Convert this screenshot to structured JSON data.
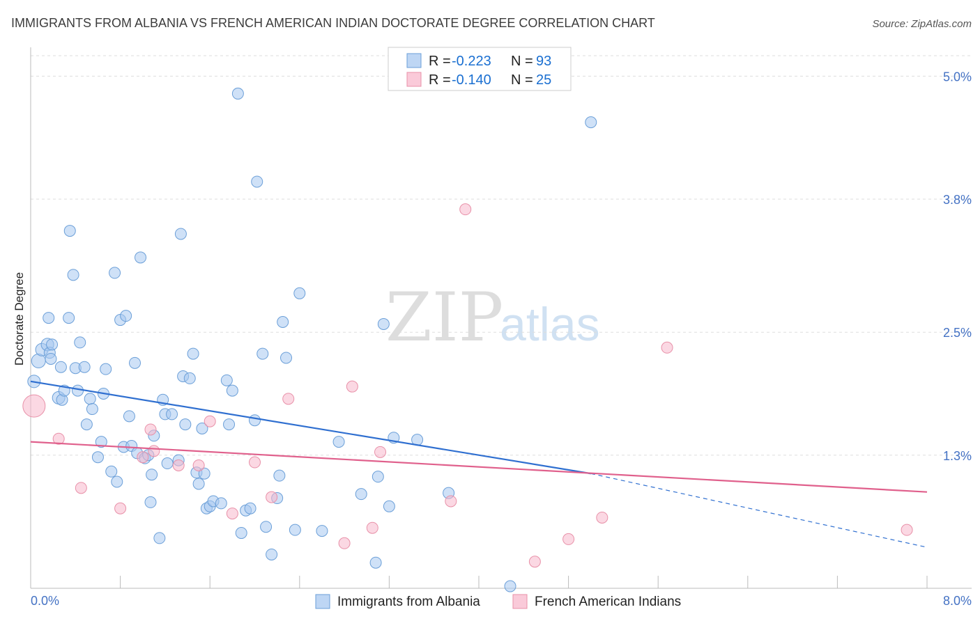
{
  "title": "IMMIGRANTS FROM ALBANIA VS FRENCH AMERICAN INDIAN DOCTORATE DEGREE CORRELATION CHART",
  "source": "Source: ZipAtlas.com",
  "watermark": {
    "zip": "ZIP",
    "atlas": "atlas"
  },
  "legend": {
    "rows": [
      {
        "r_label": "R = ",
        "r_value": "-0.223",
        "n_label": "N = ",
        "n_value": "93",
        "color": "#a8c8f0"
      },
      {
        "r_label": "R = ",
        "r_value": "-0.140",
        "n_label": "N = ",
        "n_value": "25",
        "color": "#f8b8cc"
      }
    ]
  },
  "bottom_legend": [
    {
      "label": "Immigrants from Albania",
      "color": "#a8c8f0"
    },
    {
      "label": "French American Indians",
      "color": "#f8b8cc"
    }
  ],
  "chart_data": {
    "type": "scatter",
    "ylabel": "Doctorate Degree",
    "xlim": [
      0.0,
      8.0
    ],
    "ylim": [
      0.0,
      5.2
    ],
    "x_tick_labels": [
      "0.0%",
      "8.0%"
    ],
    "y_ticks": [
      {
        "value": 1.3,
        "label": "1.3%"
      },
      {
        "value": 2.5,
        "label": "2.5%"
      },
      {
        "value": 3.8,
        "label": "3.8%"
      },
      {
        "value": 5.0,
        "label": "5.0%"
      }
    ],
    "grid": true,
    "series": [
      {
        "name": "Immigrants from Albania",
        "color": "#a8c8f0",
        "stroke": "#6b9fd8",
        "trend": {
          "x0": 0.0,
          "y0": 2.02,
          "x1": 5.0,
          "y1": 1.12,
          "dash_to_x": 8.0,
          "dash_to_y": 0.4,
          "color": "#2f6fd0"
        },
        "points": [
          [
            0.03,
            2.02
          ],
          [
            0.07,
            2.22
          ],
          [
            0.1,
            2.33
          ],
          [
            0.15,
            2.38
          ],
          [
            0.16,
            2.64
          ],
          [
            0.17,
            2.3
          ],
          [
            0.18,
            2.24
          ],
          [
            0.19,
            2.38
          ],
          [
            0.25,
            1.86
          ],
          [
            0.27,
            2.16
          ],
          [
            0.28,
            1.84
          ],
          [
            0.3,
            1.93
          ],
          [
            0.34,
            2.64
          ],
          [
            0.35,
            3.49
          ],
          [
            0.38,
            3.06
          ],
          [
            0.4,
            2.15
          ],
          [
            0.42,
            1.93
          ],
          [
            0.44,
            2.4
          ],
          [
            0.48,
            2.16
          ],
          [
            0.5,
            1.6
          ],
          [
            0.53,
            1.85
          ],
          [
            0.55,
            1.75
          ],
          [
            0.6,
            1.28
          ],
          [
            0.63,
            1.43
          ],
          [
            0.65,
            1.9
          ],
          [
            0.67,
            2.14
          ],
          [
            0.72,
            1.14
          ],
          [
            0.75,
            3.08
          ],
          [
            0.77,
            1.04
          ],
          [
            0.8,
            2.62
          ],
          [
            0.83,
            1.38
          ],
          [
            0.85,
            2.66
          ],
          [
            0.88,
            1.68
          ],
          [
            0.9,
            1.39
          ],
          [
            0.93,
            2.2
          ],
          [
            0.95,
            1.32
          ],
          [
            0.98,
            3.23
          ],
          [
            1.02,
            1.27
          ],
          [
            1.05,
            1.3
          ],
          [
            1.07,
            0.84
          ],
          [
            1.08,
            1.11
          ],
          [
            1.1,
            1.49
          ],
          [
            1.15,
            0.49
          ],
          [
            1.18,
            1.84
          ],
          [
            1.2,
            1.7
          ],
          [
            1.22,
            1.22
          ],
          [
            1.26,
            1.7
          ],
          [
            1.32,
            1.25
          ],
          [
            1.34,
            3.46
          ],
          [
            1.36,
            2.07
          ],
          [
            1.38,
            1.6
          ],
          [
            1.42,
            2.05
          ],
          [
            1.45,
            2.29
          ],
          [
            1.48,
            1.13
          ],
          [
            1.5,
            1.02
          ],
          [
            1.53,
            1.56
          ],
          [
            1.55,
            1.12
          ],
          [
            1.57,
            0.78
          ],
          [
            1.6,
            0.8
          ],
          [
            1.63,
            0.85
          ],
          [
            1.7,
            0.83
          ],
          [
            1.75,
            2.03
          ],
          [
            1.77,
            1.6
          ],
          [
            1.8,
            1.93
          ],
          [
            1.85,
            4.83
          ],
          [
            1.88,
            0.54
          ],
          [
            1.92,
            0.76
          ],
          [
            1.96,
            0.78
          ],
          [
            2.0,
            1.64
          ],
          [
            2.02,
            3.97
          ],
          [
            2.07,
            2.29
          ],
          [
            2.1,
            0.6
          ],
          [
            2.15,
            0.33
          ],
          [
            2.2,
            0.88
          ],
          [
            2.22,
            1.1
          ],
          [
            2.25,
            2.6
          ],
          [
            2.28,
            2.25
          ],
          [
            2.4,
            2.88
          ],
          [
            2.36,
            0.57
          ],
          [
            2.6,
            0.56
          ],
          [
            2.75,
            1.43
          ],
          [
            2.95,
            0.92
          ],
          [
            3.08,
            0.25
          ],
          [
            3.1,
            1.09
          ],
          [
            3.15,
            2.58
          ],
          [
            3.2,
            0.8
          ],
          [
            3.24,
            1.47
          ],
          [
            3.45,
            1.45
          ],
          [
            3.73,
            0.93
          ],
          [
            4.28,
            0.02
          ],
          [
            5.0,
            4.55
          ]
        ],
        "point_radius": [
          9,
          10,
          9,
          9,
          8,
          8,
          8,
          8,
          9,
          8,
          8,
          8,
          8,
          8,
          8,
          8,
          8,
          8,
          8,
          8,
          8,
          8,
          8,
          8,
          8,
          8,
          8,
          8,
          8,
          8,
          8,
          8,
          8,
          8,
          8,
          8,
          8,
          8,
          8,
          8,
          8,
          8,
          8,
          8,
          8,
          8,
          8,
          8,
          8,
          8,
          8,
          8,
          8,
          8,
          8,
          8,
          8,
          8,
          8,
          8,
          8,
          8,
          8,
          8,
          8,
          8,
          8,
          8,
          8,
          8,
          8,
          8,
          8,
          8,
          8,
          8,
          8,
          8,
          8,
          8,
          8,
          8,
          8,
          8,
          8,
          8,
          8,
          8,
          8,
          8,
          8
        ]
      },
      {
        "name": "French American Indians",
        "color": "#f8b8cc",
        "stroke": "#e890a8",
        "trend": {
          "x0": 0.0,
          "y0": 1.43,
          "x1": 8.0,
          "y1": 0.94,
          "color": "#e0608c"
        },
        "points": [
          [
            0.03,
            1.78
          ],
          [
            0.25,
            1.46
          ],
          [
            0.45,
            0.98
          ],
          [
            0.8,
            0.78
          ],
          [
            1.0,
            1.28
          ],
          [
            1.07,
            1.55
          ],
          [
            1.1,
            1.34
          ],
          [
            1.32,
            1.2
          ],
          [
            1.5,
            1.2
          ],
          [
            1.6,
            1.63
          ],
          [
            1.8,
            0.73
          ],
          [
            2.0,
            1.23
          ],
          [
            2.15,
            0.89
          ],
          [
            2.3,
            1.85
          ],
          [
            2.8,
            0.44
          ],
          [
            2.87,
            1.97
          ],
          [
            3.05,
            0.59
          ],
          [
            3.12,
            1.33
          ],
          [
            3.75,
            0.85
          ],
          [
            3.88,
            3.7
          ],
          [
            4.5,
            0.26
          ],
          [
            4.8,
            0.48
          ],
          [
            5.1,
            0.69
          ],
          [
            5.68,
            2.35
          ],
          [
            7.82,
            0.57
          ]
        ],
        "point_radius": [
          16,
          8,
          8,
          8,
          8,
          8,
          8,
          8,
          8,
          8,
          8,
          8,
          8,
          8,
          8,
          8,
          8,
          8,
          8,
          8,
          8,
          8,
          8,
          8,
          8
        ]
      }
    ]
  }
}
